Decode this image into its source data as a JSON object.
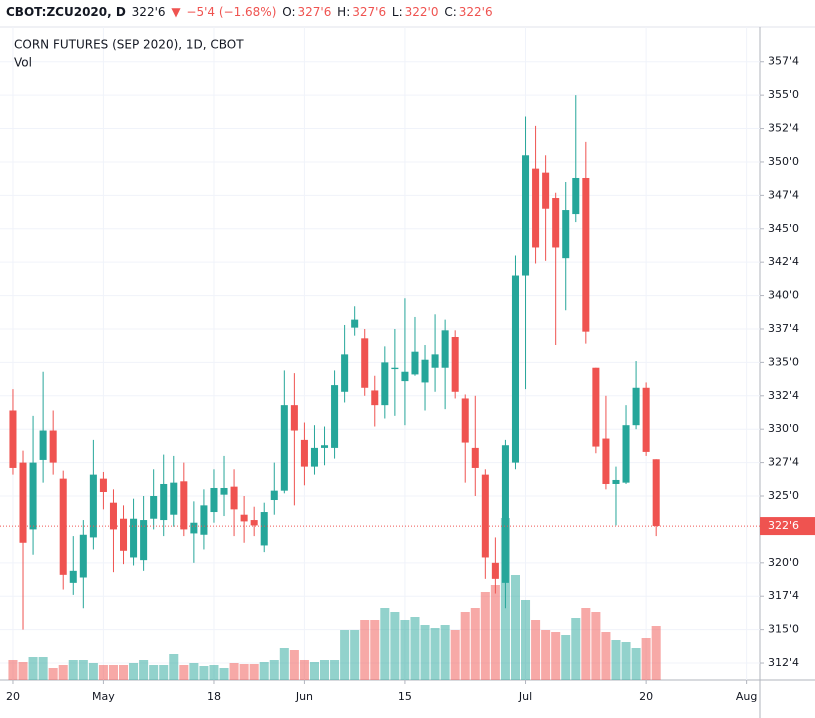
{
  "chart_data": {
    "type": "candlestick",
    "title": "CORN FUTURES (SEP 2020), 1D, CBOT",
    "volume_title": "Vol",
    "header": {
      "symbol": "CBOT:ZCU2020, D",
      "last": "322'6",
      "arrow": "▼",
      "change": "−5'4 (−1.68%)",
      "open_label": "O:",
      "open": "327'6",
      "high_label": "H:",
      "high": "327'6",
      "low_label": "L:",
      "low": "322'0",
      "close_label": "C:",
      "close": "322'6"
    },
    "up_color": "#26a69a",
    "down_color": "#ef5350",
    "open": [
      331.4,
      327.5,
      322.5,
      327.7,
      329.9,
      326.3,
      318.5,
      318.9,
      321.9,
      326.3,
      324.5,
      323.3,
      320.4,
      320.2,
      323.3,
      323.2,
      323.6,
      326.1,
      322.2,
      322.1,
      323.8,
      325.1,
      325.7,
      323.6,
      323.2,
      321.3,
      324.7,
      325.4,
      331.8,
      329.2,
      327.2,
      328.6,
      328.6,
      332.8,
      337.6,
      336.8,
      332.9,
      331.8,
      334.5,
      333.6,
      334.1,
      333.5,
      334.6,
      334.6,
      336.9,
      332.3,
      328.6,
      326.6,
      320.0,
      318.5,
      327.5,
      341.5,
      349.5,
      349.2,
      347.3,
      342.8,
      346.1,
      348.8,
      334.6,
      329.3,
      325.9,
      326.0,
      330.3,
      333.1,
      327.75
    ],
    "high": [
      333.0,
      328.4,
      331.0,
      334.3,
      331.4,
      326.9,
      322.0,
      323.2,
      329.2,
      326.8,
      325.5,
      324.3,
      324.8,
      325.0,
      327.0,
      328.1,
      328.0,
      327.5,
      324.6,
      325.5,
      327.0,
      328.0,
      327.0,
      325.0,
      324.2,
      324.5,
      327.5,
      334.4,
      334.2,
      330.5,
      330.3,
      330.2,
      334.4,
      337.8,
      339.2,
      337.5,
      334.0,
      336.2,
      337.5,
      339.8,
      338.4,
      336.3,
      338.6,
      338.2,
      337.4,
      332.6,
      332.5,
      327.0,
      321.9,
      329.2,
      343.0,
      353.4,
      352.7,
      350.5,
      347.7,
      348.5,
      355.0,
      351.5,
      334.6,
      332.5,
      327.2,
      331.8,
      335.1,
      333.5,
      327.75
    ],
    "low": [
      326.6,
      315.0,
      320.6,
      326.0,
      326.6,
      318.0,
      317.6,
      316.6,
      321.0,
      324.0,
      319.3,
      319.9,
      319.8,
      319.4,
      322.5,
      322.0,
      322.7,
      322.0,
      320.0,
      321.0,
      323.0,
      323.5,
      322.0,
      321.5,
      322.0,
      320.8,
      323.6,
      325.2,
      324.3,
      325.8,
      326.6,
      327.3,
      327.8,
      332.0,
      337.0,
      332.5,
      330.2,
      330.8,
      331.0,
      330.3,
      334.0,
      331.4,
      332.8,
      331.5,
      332.3,
      326.0,
      325.0,
      318.8,
      317.7,
      316.6,
      327.0,
      333.0,
      342.4,
      342.6,
      336.3,
      338.9,
      345.5,
      336.4,
      328.2,
      325.5,
      322.8,
      325.9,
      330.0,
      328.0,
      322.0
    ],
    "close": [
      327.1,
      321.5,
      327.5,
      329.9,
      327.5,
      319.1,
      319.4,
      322.1,
      326.6,
      325.3,
      322.5,
      320.9,
      323.3,
      323.2,
      325.0,
      325.9,
      326.0,
      322.5,
      323.0,
      324.3,
      325.6,
      325.6,
      324.0,
      323.1,
      322.8,
      323.8,
      325.4,
      331.8,
      329.9,
      327.2,
      328.6,
      328.8,
      333.3,
      335.6,
      338.2,
      333.1,
      331.8,
      335.0,
      334.6,
      334.3,
      335.8,
      335.2,
      335.6,
      337.4,
      332.8,
      329.0,
      327.1,
      320.4,
      318.8,
      328.8,
      341.5,
      350.5,
      343.6,
      346.5,
      343.6,
      346.4,
      348.8,
      337.3,
      328.7,
      325.9,
      326.2,
      330.3,
      333.1,
      328.3,
      322.75
    ],
    "volume": [
      20,
      18,
      23,
      23,
      12,
      15,
      20,
      20,
      17,
      15,
      15,
      15,
      17,
      20,
      15,
      15,
      26,
      15,
      17,
      14,
      15,
      12,
      17,
      16,
      16,
      18,
      20,
      32,
      30,
      20,
      18,
      20,
      20,
      50,
      50,
      60,
      60,
      72,
      68,
      60,
      63,
      55,
      52,
      55,
      50,
      68,
      72,
      88,
      95,
      162,
      105,
      80,
      60,
      50,
      48,
      45,
      62,
      72,
      68,
      48,
      40,
      38,
      32,
      42,
      54
    ],
    "volume_ylim": [
      0,
      653
    ],
    "xlim": [
      -1.29,
      74.33
    ],
    "xticks": [
      {
        "value": 0,
        "label": "20"
      },
      {
        "value": 9,
        "label": "May"
      },
      {
        "value": 20,
        "label": "18"
      },
      {
        "value": 29,
        "label": "Jun"
      },
      {
        "value": 39,
        "label": "15"
      },
      {
        "value": 51,
        "label": "Jul"
      },
      {
        "value": 63,
        "label": "20"
      },
      {
        "value": 73,
        "label": "Aug"
      }
    ],
    "ylim": [
      311.23,
      360.1
    ],
    "yticks": [
      {
        "value": 312.5,
        "label": "312'4"
      },
      {
        "value": 315,
        "label": "315'0"
      },
      {
        "value": 317.5,
        "label": "317'4"
      },
      {
        "value": 320,
        "label": "320'0"
      },
      {
        "value": 325,
        "label": "325'0"
      },
      {
        "value": 327.5,
        "label": "327'4"
      },
      {
        "value": 330,
        "label": "330'0"
      },
      {
        "value": 332.5,
        "label": "332'4"
      },
      {
        "value": 335,
        "label": "335'0"
      },
      {
        "value": 337.5,
        "label": "337'4"
      },
      {
        "value": 340,
        "label": "340'0"
      },
      {
        "value": 342.5,
        "label": "342'4"
      },
      {
        "value": 345,
        "label": "345'0"
      },
      {
        "value": 347.5,
        "label": "347'4"
      },
      {
        "value": 350,
        "label": "350'0"
      },
      {
        "value": 352.5,
        "label": "352'4"
      },
      {
        "value": 355,
        "label": "355'0"
      },
      {
        "value": 357.5,
        "label": "357'4"
      }
    ],
    "last_price": {
      "value": 322.75,
      "label": "322'6"
    },
    "grid": true
  }
}
